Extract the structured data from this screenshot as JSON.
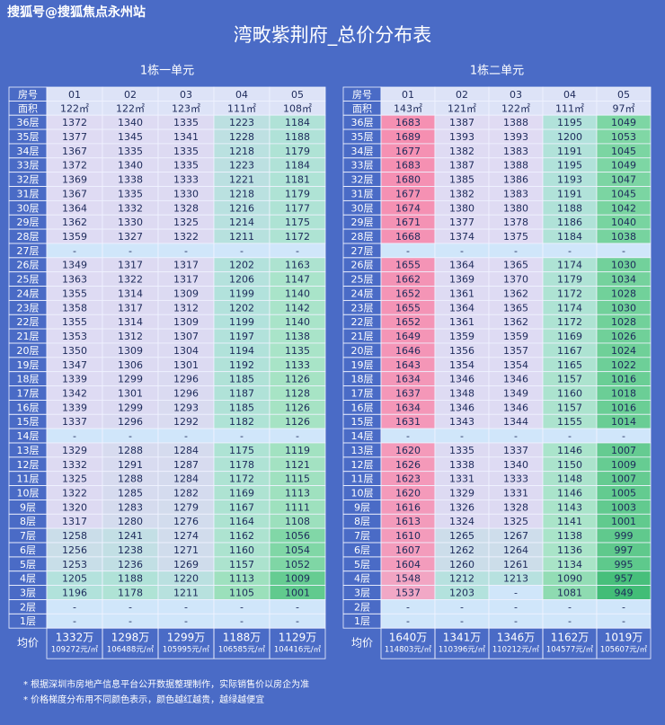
{
  "watermark": "搜狐号@搜狐焦点永州站",
  "title": "湾畋紫荆府_总价分布表",
  "tables": [
    {
      "caption": "1栋一单元",
      "header_label": "房号",
      "units": [
        "01",
        "02",
        "03",
        "04",
        "05"
      ],
      "area_label": "面积",
      "areas": [
        "122㎡",
        "122㎡",
        "123㎡",
        "111㎡",
        "108㎡"
      ],
      "rows": [
        {
          "floor": "36层",
          "prices": [
            1372,
            1340,
            1335,
            1223,
            1184
          ]
        },
        {
          "floor": "35层",
          "prices": [
            1377,
            1345,
            1341,
            1228,
            1188
          ]
        },
        {
          "floor": "34层",
          "prices": [
            1367,
            1335,
            1335,
            1218,
            1179
          ]
        },
        {
          "floor": "33层",
          "prices": [
            1372,
            1340,
            1335,
            1223,
            1184
          ]
        },
        {
          "floor": "32层",
          "prices": [
            1369,
            1338,
            1333,
            1221,
            1181
          ]
        },
        {
          "floor": "31层",
          "prices": [
            1367,
            1335,
            1330,
            1218,
            1179
          ]
        },
        {
          "floor": "30层",
          "prices": [
            1364,
            1332,
            1328,
            1216,
            1177
          ]
        },
        {
          "floor": "29层",
          "prices": [
            1362,
            1330,
            1325,
            1214,
            1175
          ]
        },
        {
          "floor": "28层",
          "prices": [
            1359,
            1327,
            1322,
            1211,
            1172
          ]
        },
        {
          "floor": "27层",
          "prices": [
            "-",
            "-",
            "-",
            "-",
            "-"
          ]
        },
        {
          "floor": "26层",
          "prices": [
            1349,
            1317,
            1317,
            1202,
            1163
          ]
        },
        {
          "floor": "25层",
          "prices": [
            1363,
            1322,
            1317,
            1206,
            1147
          ]
        },
        {
          "floor": "24层",
          "prices": [
            1355,
            1314,
            1309,
            1199,
            1140
          ]
        },
        {
          "floor": "23层",
          "prices": [
            1358,
            1317,
            1312,
            1202,
            1142
          ]
        },
        {
          "floor": "22层",
          "prices": [
            1355,
            1314,
            1309,
            1199,
            1140
          ]
        },
        {
          "floor": "21层",
          "prices": [
            1353,
            1312,
            1307,
            1197,
            1138
          ]
        },
        {
          "floor": "20层",
          "prices": [
            1350,
            1309,
            1304,
            1194,
            1135
          ]
        },
        {
          "floor": "19层",
          "prices": [
            1347,
            1306,
            1301,
            1192,
            1133
          ]
        },
        {
          "floor": "18层",
          "prices": [
            1339,
            1299,
            1296,
            1185,
            1126
          ]
        },
        {
          "floor": "17层",
          "prices": [
            1342,
            1301,
            1296,
            1187,
            1128
          ]
        },
        {
          "floor": "16层",
          "prices": [
            1339,
            1299,
            1293,
            1185,
            1126
          ]
        },
        {
          "floor": "15层",
          "prices": [
            1337,
            1296,
            1292,
            1182,
            1126
          ]
        },
        {
          "floor": "14层",
          "prices": [
            "-",
            "-",
            "-",
            "-",
            "-"
          ]
        },
        {
          "floor": "13层",
          "prices": [
            1329,
            1288,
            1284,
            1175,
            1119
          ]
        },
        {
          "floor": "12层",
          "prices": [
            1332,
            1291,
            1287,
            1178,
            1121
          ]
        },
        {
          "floor": "11层",
          "prices": [
            1325,
            1288,
            1284,
            1172,
            1115
          ]
        },
        {
          "floor": "10层",
          "prices": [
            1322,
            1285,
            1282,
            1169,
            1113
          ]
        },
        {
          "floor": "9层",
          "prices": [
            1320,
            1283,
            1279,
            1167,
            1111
          ]
        },
        {
          "floor": "8层",
          "prices": [
            1317,
            1280,
            1276,
            1164,
            1108
          ]
        },
        {
          "floor": "7层",
          "prices": [
            1258,
            1241,
            1274,
            1162,
            1056
          ]
        },
        {
          "floor": "6层",
          "prices": [
            1256,
            1238,
            1271,
            1160,
            1054
          ]
        },
        {
          "floor": "5层",
          "prices": [
            1253,
            1236,
            1269,
            1157,
            1052
          ]
        },
        {
          "floor": "4层",
          "prices": [
            1205,
            1188,
            1220,
            1113,
            1009
          ]
        },
        {
          "floor": "3层",
          "prices": [
            1196,
            1178,
            1211,
            1105,
            1001
          ]
        },
        {
          "floor": "2层",
          "prices": [
            "-",
            "-",
            "-",
            "-",
            "-"
          ]
        },
        {
          "floor": "1层",
          "prices": [
            "-",
            "-",
            "-",
            "-",
            "-"
          ]
        }
      ],
      "avg_label": "均价",
      "avg_totals": [
        "1332万",
        "1298万",
        "1299万",
        "1188万",
        "1129万"
      ],
      "avg_unit_prices": [
        "109272元/㎡",
        "106488元/㎡",
        "105995元/㎡",
        "106585元/㎡",
        "104416元/㎡"
      ]
    },
    {
      "caption": "1栋二单元",
      "header_label": "房号",
      "units": [
        "01",
        "02",
        "03",
        "04",
        "05"
      ],
      "area_label": "面积",
      "areas": [
        "143㎡",
        "121㎡",
        "122㎡",
        "111㎡",
        "97㎡"
      ],
      "rows": [
        {
          "floor": "36层",
          "prices": [
            1683,
            1387,
            1388,
            1195,
            1049
          ]
        },
        {
          "floor": "35层",
          "prices": [
            1689,
            1393,
            1393,
            1200,
            1053
          ]
        },
        {
          "floor": "34层",
          "prices": [
            1677,
            1382,
            1383,
            1191,
            1045
          ]
        },
        {
          "floor": "33层",
          "prices": [
            1683,
            1387,
            1388,
            1195,
            1049
          ]
        },
        {
          "floor": "32层",
          "prices": [
            1680,
            1385,
            1386,
            1193,
            1047
          ]
        },
        {
          "floor": "31层",
          "prices": [
            1677,
            1382,
            1383,
            1191,
            1045
          ]
        },
        {
          "floor": "30层",
          "prices": [
            1674,
            1380,
            1380,
            1188,
            1042
          ]
        },
        {
          "floor": "29层",
          "prices": [
            1671,
            1377,
            1378,
            1186,
            1040
          ]
        },
        {
          "floor": "28层",
          "prices": [
            1668,
            1374,
            1375,
            1184,
            1038
          ]
        },
        {
          "floor": "27层",
          "prices": [
            "-",
            "-",
            "-",
            "-",
            "-"
          ]
        },
        {
          "floor": "26层",
          "prices": [
            1655,
            1364,
            1365,
            1174,
            1030
          ]
        },
        {
          "floor": "25层",
          "prices": [
            1662,
            1369,
            1370,
            1179,
            1034
          ]
        },
        {
          "floor": "24层",
          "prices": [
            1652,
            1361,
            1362,
            1172,
            1028
          ]
        },
        {
          "floor": "23层",
          "prices": [
            1655,
            1364,
            1365,
            1174,
            1030
          ]
        },
        {
          "floor": "22层",
          "prices": [
            1652,
            1361,
            1362,
            1172,
            1028
          ]
        },
        {
          "floor": "21层",
          "prices": [
            1649,
            1359,
            1359,
            1169,
            1026
          ]
        },
        {
          "floor": "20层",
          "prices": [
            1646,
            1356,
            1357,
            1167,
            1024
          ]
        },
        {
          "floor": "19层",
          "prices": [
            1643,
            1354,
            1354,
            1165,
            1022
          ]
        },
        {
          "floor": "18层",
          "prices": [
            1634,
            1346,
            1346,
            1157,
            1016
          ]
        },
        {
          "floor": "17层",
          "prices": [
            1637,
            1348,
            1349,
            1160,
            1018
          ]
        },
        {
          "floor": "16层",
          "prices": [
            1634,
            1346,
            1346,
            1157,
            1016
          ]
        },
        {
          "floor": "15层",
          "prices": [
            1631,
            1343,
            1344,
            1155,
            1014
          ]
        },
        {
          "floor": "14层",
          "prices": [
            "-",
            "-",
            "-",
            "-",
            "-"
          ]
        },
        {
          "floor": "13层",
          "prices": [
            1620,
            1335,
            1337,
            1146,
            1007
          ]
        },
        {
          "floor": "12层",
          "prices": [
            1626,
            1338,
            1340,
            1150,
            1009
          ]
        },
        {
          "floor": "11层",
          "prices": [
            1623,
            1331,
            1333,
            1148,
            1007
          ]
        },
        {
          "floor": "10层",
          "prices": [
            1620,
            1329,
            1331,
            1146,
            1005
          ]
        },
        {
          "floor": "9层",
          "prices": [
            1616,
            1326,
            1328,
            1143,
            1003
          ]
        },
        {
          "floor": "8层",
          "prices": [
            1613,
            1324,
            1325,
            1141,
            1001
          ]
        },
        {
          "floor": "7层",
          "prices": [
            1610,
            1265,
            1267,
            1138,
            999
          ]
        },
        {
          "floor": "6层",
          "prices": [
            1607,
            1262,
            1264,
            1136,
            997
          ]
        },
        {
          "floor": "5层",
          "prices": [
            1604,
            1260,
            1261,
            1134,
            995
          ]
        },
        {
          "floor": "4层",
          "prices": [
            1548,
            1212,
            1213,
            1090,
            957
          ]
        },
        {
          "floor": "3层",
          "prices": [
            1537,
            1203,
            "-",
            1081,
            949
          ]
        },
        {
          "floor": "2层",
          "prices": [
            "-",
            "-",
            "-",
            "-",
            "-"
          ]
        },
        {
          "floor": "1层",
          "prices": [
            "-",
            "-",
            "-",
            "-",
            "-"
          ]
        }
      ],
      "avg_label": "均价",
      "avg_totals": [
        "1640万",
        "1341万",
        "1346万",
        "1162万",
        "1019万"
      ],
      "avg_unit_prices": [
        "114803元/㎡",
        "110396元/㎡",
        "110212元/㎡",
        "104577元/㎡",
        "105607元/㎡"
      ]
    }
  ],
  "notes": [
    "* 根据深圳市房地产信息平台公开数据整理制作，实际销售价以房企为准",
    "* 价格梯度分布用不同颜色表示，颜色越红越贵，越绿越便宜"
  ]
}
